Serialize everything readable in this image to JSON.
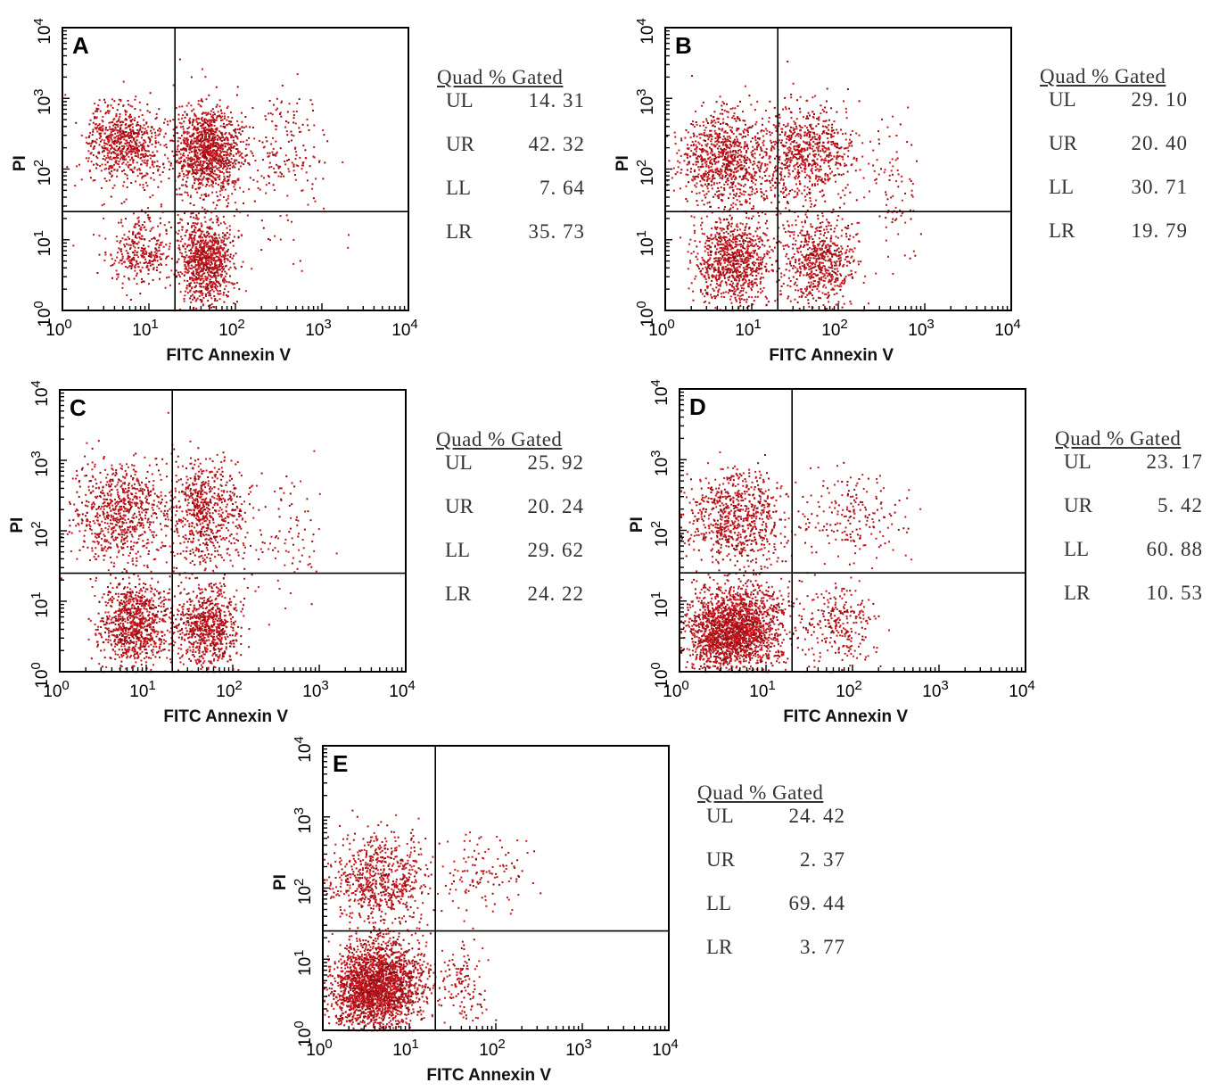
{
  "chart_data": [
    {
      "type": "scatter",
      "panel_label": "A",
      "xlabel": "FITC Annexin V",
      "ylabel": "PI",
      "xlim": [
        1,
        10000
      ],
      "ylim": [
        1,
        10000
      ],
      "x_ticks": [
        "10^0",
        "10^1",
        "10^2",
        "10^3",
        "10^4"
      ],
      "y_ticks": [
        "10^0",
        "10^1",
        "10^2",
        "10^3",
        "10^4"
      ],
      "quadrant_gate": {
        "x": 20,
        "y": 25
      },
      "legend": {
        "header": [
          "Quad",
          "% Gated"
        ],
        "rows": [
          {
            "quad": "UL",
            "value": "14. 31"
          },
          {
            "quad": "UR",
            "value": "42. 32"
          },
          {
            "quad": "LL",
            "value": "7. 64"
          },
          {
            "quad": "LR",
            "value": "35. 73"
          }
        ]
      }
    },
    {
      "type": "scatter",
      "panel_label": "B",
      "xlabel": "FITC Annexin V",
      "ylabel": "PI",
      "xlim": [
        1,
        10000
      ],
      "ylim": [
        1,
        10000
      ],
      "x_ticks": [
        "10^0",
        "10^1",
        "10^2",
        "10^3",
        "10^4"
      ],
      "y_ticks": [
        "10^0",
        "10^1",
        "10^2",
        "10^3",
        "10^4"
      ],
      "quadrant_gate": {
        "x": 20,
        "y": 25
      },
      "legend": {
        "header": [
          "Quad",
          "% Gated"
        ],
        "rows": [
          {
            "quad": "UL",
            "value": "29. 10"
          },
          {
            "quad": "UR",
            "value": "20. 40"
          },
          {
            "quad": "LL",
            "value": "30. 71"
          },
          {
            "quad": "LR",
            "value": "19. 79"
          }
        ]
      }
    },
    {
      "type": "scatter",
      "panel_label": "C",
      "xlabel": "FITC Annexin V",
      "ylabel": "PI",
      "xlim": [
        1,
        10000
      ],
      "ylim": [
        1,
        10000
      ],
      "x_ticks": [
        "10^0",
        "10^1",
        "10^2",
        "10^3",
        "10^4"
      ],
      "y_ticks": [
        "10^0",
        "10^1",
        "10^2",
        "10^3",
        "10^4"
      ],
      "quadrant_gate": {
        "x": 20,
        "y": 25
      },
      "legend": {
        "header": [
          "Quad",
          "% Gated"
        ],
        "rows": [
          {
            "quad": "UL",
            "value": "25. 92"
          },
          {
            "quad": "UR",
            "value": "20. 24"
          },
          {
            "quad": "LL",
            "value": "29. 62"
          },
          {
            "quad": "LR",
            "value": "24. 22"
          }
        ]
      }
    },
    {
      "type": "scatter",
      "panel_label": "D",
      "xlabel": "FITC Annexin V",
      "ylabel": "PI",
      "xlim": [
        1,
        10000
      ],
      "ylim": [
        1,
        10000
      ],
      "x_ticks": [
        "10^0",
        "10^1",
        "10^2",
        "10^3",
        "10^4"
      ],
      "y_ticks": [
        "10^0",
        "10^1",
        "10^2",
        "10^3",
        "10^4"
      ],
      "quadrant_gate": {
        "x": 20,
        "y": 25
      },
      "legend": {
        "header": [
          "Quad",
          "% Gated"
        ],
        "rows": [
          {
            "quad": "UL",
            "value": "23. 17"
          },
          {
            "quad": "UR",
            "value": "5. 42"
          },
          {
            "quad": "LL",
            "value": "60. 88"
          },
          {
            "quad": "LR",
            "value": "10. 53"
          }
        ]
      }
    },
    {
      "type": "scatter",
      "panel_label": "E",
      "xlabel": "FITC Annexin V",
      "ylabel": "PI",
      "xlim": [
        1,
        10000
      ],
      "ylim": [
        1,
        10000
      ],
      "x_ticks": [
        "10^0",
        "10^1",
        "10^2",
        "10^3",
        "10^4"
      ],
      "y_ticks": [
        "10^0",
        "10^1",
        "10^2",
        "10^3",
        "10^4"
      ],
      "quadrant_gate": {
        "x": 20,
        "y": 25
      },
      "legend": {
        "header": [
          "Quad",
          "% Gated"
        ],
        "rows": [
          {
            "quad": "UL",
            "value": "24. 42"
          },
          {
            "quad": "UR",
            "value": "2. 37"
          },
          {
            "quad": "LL",
            "value": "69. 44"
          },
          {
            "quad": "LR",
            "value": "3. 77"
          }
        ]
      }
    }
  ],
  "colors": {
    "dots": "#c8161d",
    "dots_dark": "#8b0d12",
    "axis": "#000000"
  }
}
